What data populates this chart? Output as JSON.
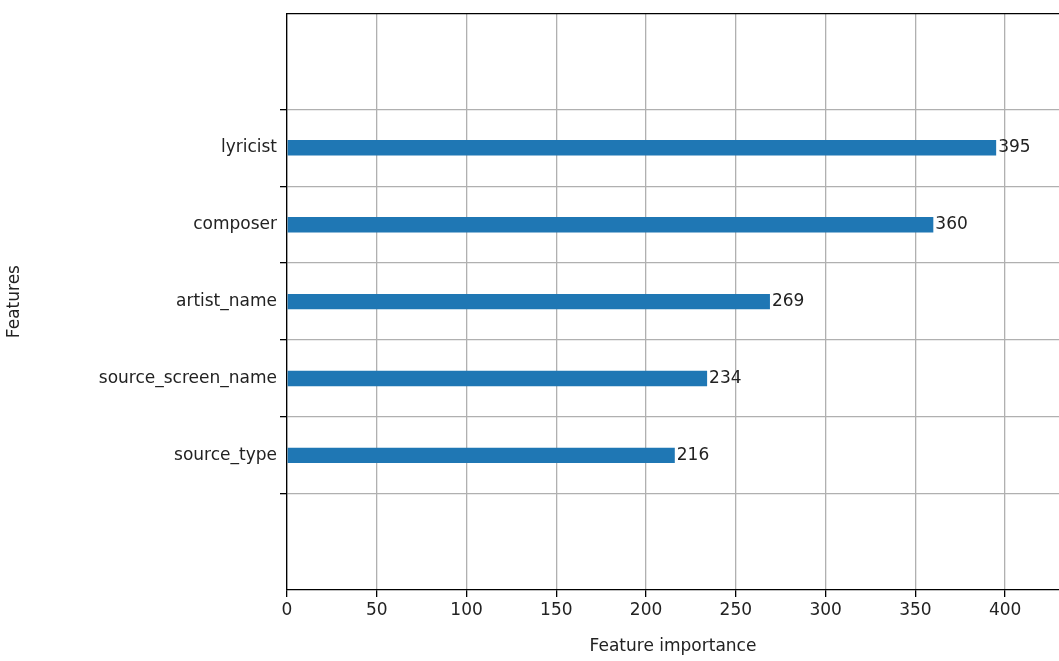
{
  "chart_data": {
    "type": "bar",
    "orientation": "horizontal",
    "xlabel": "Feature importance",
    "ylabel": "Features",
    "categories": [
      "lyricist",
      "composer",
      "artist_name",
      "source_screen_name",
      "source_type"
    ],
    "values": [
      395,
      360,
      269,
      234,
      216
    ],
    "color": "#1f77b4",
    "xlim": [
      0,
      430
    ],
    "xticks": [
      0,
      50,
      100,
      150,
      200,
      250,
      300,
      350,
      400
    ],
    "grid": true,
    "data_labels": true,
    "legend": false
  }
}
